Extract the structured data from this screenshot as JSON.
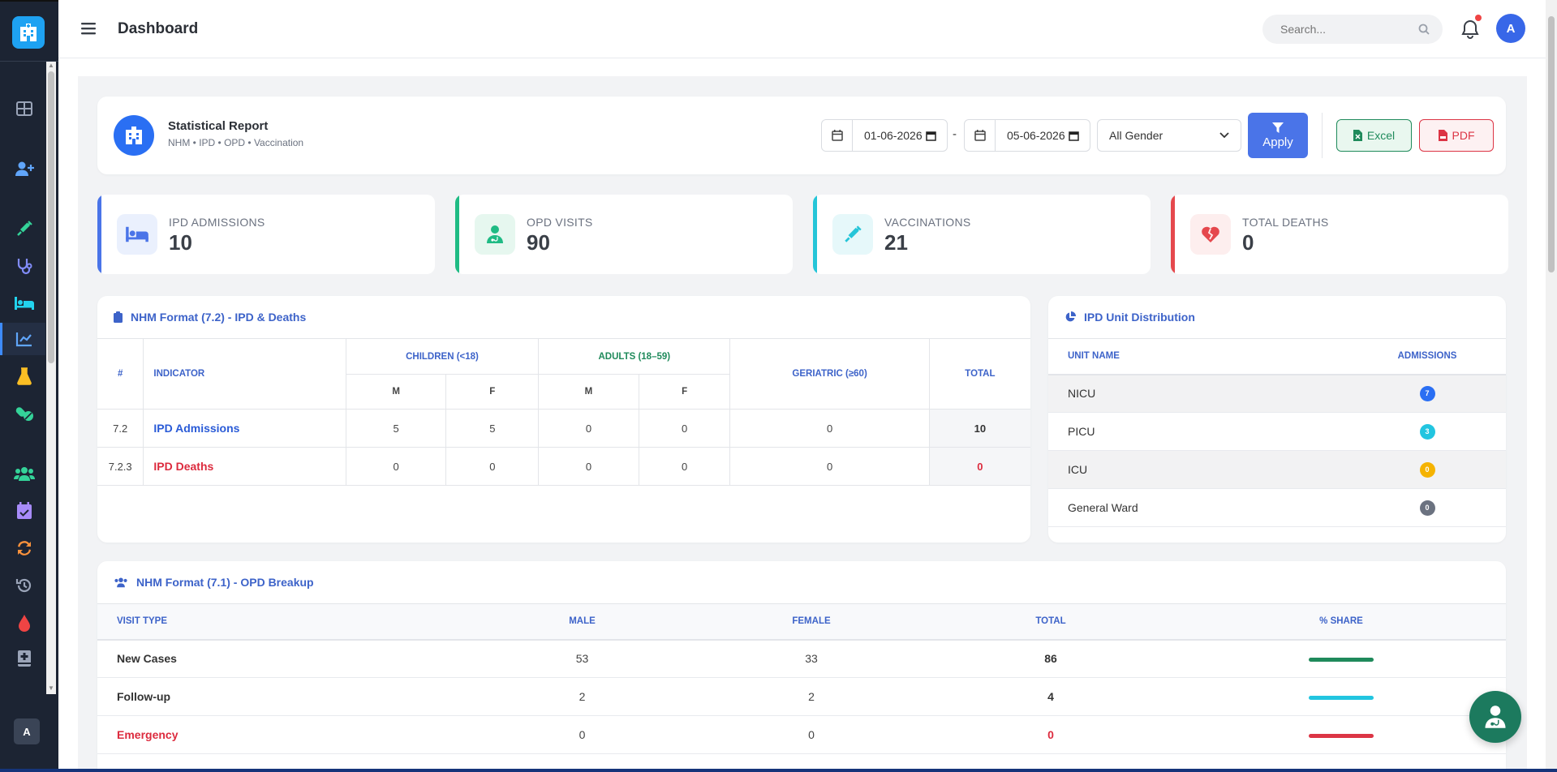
{
  "topbar": {
    "title": "Dashboard",
    "search_placeholder": "Search..."
  },
  "user": {
    "avatar_initial": "A"
  },
  "sidebar": {
    "avatar_initial": "A",
    "items": [
      {
        "icon": "grid-icon",
        "color": "#9aa4b8"
      },
      {
        "icon": "user-plus-icon",
        "color": "#60a5fa"
      },
      {
        "icon": "syringe-icon",
        "color": "#34d399"
      },
      {
        "icon": "stethoscope-icon",
        "color": "#818cf8"
      },
      {
        "icon": "bed-icon",
        "color": "#22d3ee"
      },
      {
        "icon": "chart-line-icon",
        "color": "#60a5fa",
        "active": true
      },
      {
        "icon": "flask-icon",
        "color": "#fbbf24"
      },
      {
        "icon": "pills-icon",
        "color": "#34d399"
      },
      {
        "icon": "users-icon",
        "color": "#34d399"
      },
      {
        "icon": "calendar-check-icon",
        "color": "#a78bfa"
      },
      {
        "icon": "sync-icon",
        "color": "#fb923c"
      },
      {
        "icon": "history-icon",
        "color": "#9aa4b8"
      },
      {
        "icon": "blood-drop-icon",
        "color": "#ef4444"
      },
      {
        "icon": "book-medical-icon",
        "color": "#9aa4b8"
      }
    ]
  },
  "report": {
    "title": "Statistical Report",
    "subtitle": "NHM • IPD • OPD • Vaccination",
    "date_from": "01-06-2026",
    "date_to": "05-06-2026",
    "separator": "-",
    "gender": "All Gender",
    "apply_label": "Apply",
    "excel_label": "Excel",
    "pdf_label": "PDF"
  },
  "stats": [
    {
      "label": "IPD ADMISSIONS",
      "value": "10",
      "color": "#4a74e8",
      "icon": "bed-icon"
    },
    {
      "label": "OPD VISITS",
      "value": "90",
      "color": "#1fbb84",
      "icon": "doctor-icon"
    },
    {
      "label": "VACCINATIONS",
      "value": "21",
      "color": "#25c5d8",
      "icon": "syringe-icon"
    },
    {
      "label": "TOTAL DEATHS",
      "value": "0",
      "color": "#e5484d",
      "icon": "heart-broken-icon"
    }
  ],
  "nhm72": {
    "title": "NHM Format (7.2) - IPD & Deaths",
    "headers": {
      "num": "#",
      "indicator": "INDICATOR",
      "children": "CHILDREN (<18)",
      "adults": "ADULTS (18–59)",
      "geriatric": "GERIATRIC (≥60)",
      "total": "TOTAL",
      "m": "M",
      "f": "F"
    },
    "rows": [
      {
        "num": "7.2",
        "indicator": "IPD Admissions",
        "c_m": "5",
        "c_f": "5",
        "a_m": "0",
        "a_f": "0",
        "ger": "0",
        "total": "10"
      },
      {
        "num": "7.2.3",
        "indicator": "IPD Deaths",
        "c_m": "0",
        "c_f": "0",
        "a_m": "0",
        "a_f": "0",
        "ger": "0",
        "total": "0"
      }
    ]
  },
  "units": {
    "title": "IPD Unit Distribution",
    "headers": {
      "name": "UNIT NAME",
      "admissions": "ADMISSIONS"
    },
    "rows": [
      {
        "name": "NICU",
        "count": "7",
        "color": "#2a6ff3"
      },
      {
        "name": "PICU",
        "count": "3",
        "color": "#22c5e0"
      },
      {
        "name": "ICU",
        "count": "0",
        "color": "#f5b301"
      },
      {
        "name": "General Ward",
        "count": "0",
        "color": "#6b7280"
      }
    ]
  },
  "opd": {
    "title": "NHM Format (7.1) - OPD Breakup",
    "headers": {
      "visit_type": "VISIT TYPE",
      "male": "MALE",
      "female": "FEMALE",
      "total": "TOTAL",
      "share": "% SHARE"
    },
    "rows": [
      {
        "type": "New Cases",
        "male": "53",
        "female": "33",
        "total": "86",
        "bar_color": "#1f8a5b"
      },
      {
        "type": "Follow-up",
        "male": "2",
        "female": "2",
        "total": "4",
        "bar_color": "#22c5e0"
      },
      {
        "type": "Emergency",
        "male": "0",
        "female": "0",
        "total": "0",
        "bar_color": "#dc3545"
      }
    ]
  }
}
